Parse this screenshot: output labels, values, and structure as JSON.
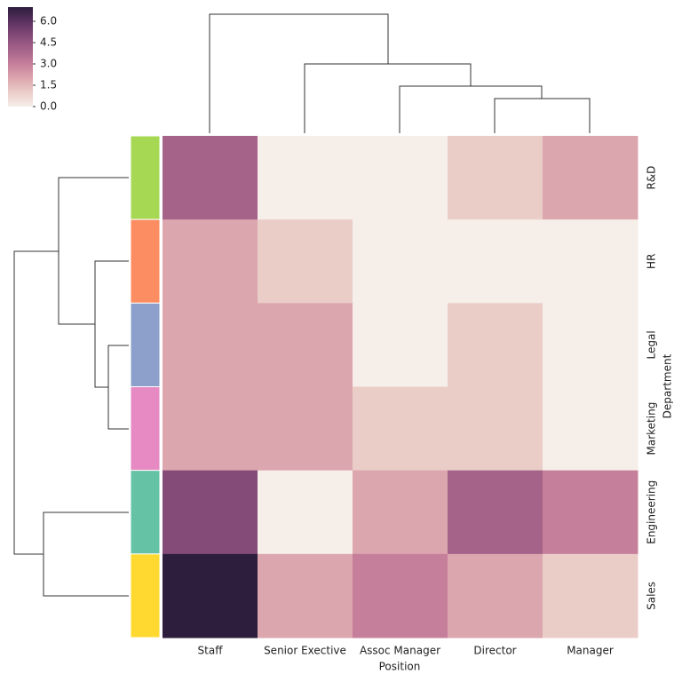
{
  "chart_data": {
    "type": "heatmap",
    "x_label": "Position",
    "y_label": "Department",
    "categories": [
      "Staff",
      "Senior Exective",
      "Assoc Manager",
      "Director",
      "Manager"
    ],
    "rows": [
      "R&D",
      "HR",
      "Legal",
      "Marketing",
      "Engineering",
      "Sales"
    ],
    "values": [
      [
        4,
        0,
        0,
        1,
        2
      ],
      [
        2,
        1,
        0,
        0,
        0
      ],
      [
        2,
        2,
        0,
        1,
        0
      ],
      [
        2,
        2,
        1,
        1,
        0
      ],
      [
        5,
        0,
        2,
        4,
        3
      ],
      [
        7,
        2,
        3,
        2,
        1
      ]
    ],
    "row_colors": [
      "#a6d854",
      "#fc8d62",
      "#8da0cb",
      "#e78ac3",
      "#66c2a5",
      "#ffd92f"
    ],
    "colormap": [
      "#f6eee9",
      "#ebcdc8",
      "#dca6ae",
      "#c67f9b",
      "#a5638a",
      "#844a78",
      "#5a3160",
      "#2d1e3e"
    ],
    "clim": [
      0,
      7
    ],
    "cticks": [
      {
        "value": 0,
        "label": "0.0"
      },
      {
        "value": 1.5,
        "label": "1.5"
      },
      {
        "value": 3,
        "label": "3.0"
      },
      {
        "value": 4.5,
        "label": "4.5"
      },
      {
        "value": 6,
        "label": "6.0"
      }
    ]
  }
}
